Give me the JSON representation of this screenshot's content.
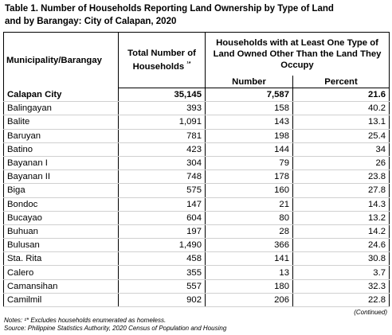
{
  "title": [
    "Table 1. Number of Households Reporting Land Ownership by Type of Land",
    "and by Barangay: City of Calapan, 2020"
  ],
  "header": {
    "col1": "Municipality/Barangay",
    "col2": "Total Number of Households",
    "col2_note": "¹*",
    "group": "Households with at Least One Type of Land Owned Other Than the Land They Occupy",
    "sub": [
      "Number",
      "Percent"
    ]
  },
  "rows": [
    [
      "Calapan City",
      "35,145",
      "7,587",
      "21.6"
    ],
    [
      "Balingayan",
      "393",
      "158",
      "40.2"
    ],
    [
      "Balite",
      "1,091",
      "143",
      "13.1"
    ],
    [
      "Baruyan",
      "781",
      "198",
      "25.4"
    ],
    [
      "Batino",
      "423",
      "144",
      "34"
    ],
    [
      "Bayanan I",
      "304",
      "79",
      "26"
    ],
    [
      "Bayanan II",
      "748",
      "178",
      "23.8"
    ],
    [
      "Biga",
      "575",
      "160",
      "27.8"
    ],
    [
      "Bondoc",
      "147",
      "21",
      "14.3"
    ],
    [
      "Bucayao",
      "604",
      "80",
      "13.2"
    ],
    [
      "Buhuan",
      "197",
      "28",
      "14.2"
    ],
    [
      "Bulusan",
      "1,490",
      "366",
      "24.6"
    ],
    [
      "Sta. Rita",
      "458",
      "141",
      "30.8"
    ],
    [
      "Calero",
      "355",
      "13",
      "3.7"
    ],
    [
      "Camansihan",
      "557",
      "180",
      "32.3"
    ],
    [
      "Camilmil",
      "902",
      "206",
      "22.8"
    ]
  ],
  "continued": "(Continued)",
  "notes": [
    "Notes: ¹* Excludes households enumerated as homeless.",
    "Source: Philippine Statistics Authority, 2020 Census of Population and Housing"
  ]
}
